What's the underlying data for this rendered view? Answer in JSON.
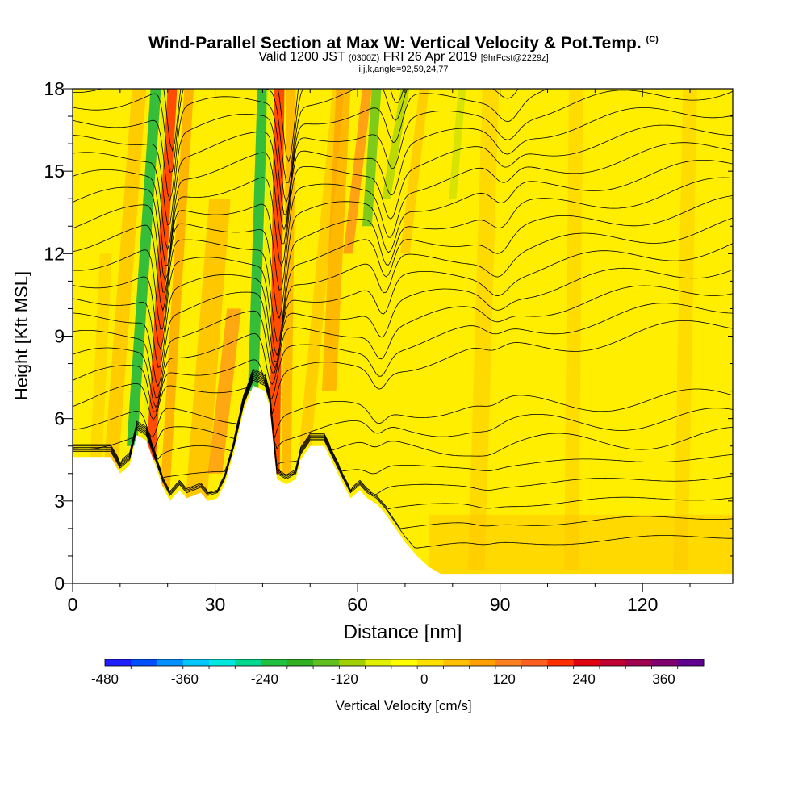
{
  "title": {
    "main": "Wind-Parallel Section at Max W: Vertical Velocity & Pot.Temp.",
    "copyright": "(C)",
    "valid_prefix": "Valid 1200 JST",
    "valid_utc": "(0300Z)",
    "valid_date": "FRI 26 Apr 2019",
    "forecast": "[9hrFcst@2229z]",
    "indices": "i,j,k,angle=92,59,24,77"
  },
  "chart_data": {
    "type": "heatmap",
    "xlabel": "Distance [nm]",
    "ylabel": "Height [Kft MSL]",
    "xlim": [
      0,
      139
    ],
    "ylim": [
      0,
      18
    ],
    "x_ticks": [
      "0",
      "30",
      "60",
      "90",
      "120"
    ],
    "y_ticks": [
      "0",
      "3",
      "6",
      "9",
      "12",
      "15",
      "18"
    ],
    "colorbar": {
      "label": "Vertical Velocity [cm/s]",
      "range": [
        -480,
        420
      ],
      "tick_labels": [
        "-480",
        "-360",
        "-240",
        "-120",
        "0",
        "120",
        "240",
        "360"
      ],
      "colors": [
        "#1e1eff",
        "#0050ff",
        "#0090ff",
        "#00c8ff",
        "#00e8e0",
        "#00d890",
        "#20c040",
        "#30b020",
        "#60c020",
        "#a0d000",
        "#e0f000",
        "#ffff00",
        "#ffe000",
        "#ffc000",
        "#ffa000",
        "#ff8020",
        "#ff6020",
        "#ff3000",
        "#e00010",
        "#c00030",
        "#a00050",
        "#800070",
        "#600090"
      ]
    },
    "terrain_kft": [
      [
        0,
        4.6
      ],
      [
        8,
        4.6
      ],
      [
        10,
        4.0
      ],
      [
        12,
        4.3
      ],
      [
        13.5,
        5.4
      ],
      [
        15.5,
        5.2
      ],
      [
        17,
        4.5
      ],
      [
        19,
        3.5
      ],
      [
        20.5,
        3.0
      ],
      [
        22.5,
        3.4
      ],
      [
        24,
        3.1
      ],
      [
        27,
        3.3
      ],
      [
        28.5,
        3.0
      ],
      [
        30.5,
        3.1
      ],
      [
        32,
        3.6
      ],
      [
        34,
        4.8
      ],
      [
        36,
        6.3
      ],
      [
        38,
        7.2
      ],
      [
        40.5,
        7.0
      ],
      [
        41.5,
        6.4
      ],
      [
        43,
        3.8
      ],
      [
        45,
        3.6
      ],
      [
        47,
        3.8
      ],
      [
        48,
        4.5
      ],
      [
        50,
        5.0
      ],
      [
        53,
        5.0
      ],
      [
        55,
        4.3
      ],
      [
        57,
        3.6
      ],
      [
        58.5,
        3.1
      ],
      [
        60.5,
        3.4
      ],
      [
        62,
        3.1
      ],
      [
        64,
        2.9
      ],
      [
        66,
        2.5
      ],
      [
        68,
        2.0
      ],
      [
        70,
        1.5
      ],
      [
        72.5,
        1.0
      ],
      [
        75,
        0.6
      ],
      [
        77.5,
        0.35
      ],
      [
        80,
        0.35
      ],
      [
        139,
        0.35
      ]
    ],
    "updraft_columns": [
      {
        "name": "",
        "peak_cm_s": 240
      },
      {
        "name": "",
        "peak_cm_s": 240
      },
      {
        "name": "",
        "peak_cm_s": 180
      }
    ],
    "downdraft_columns": [
      {
        "name": "",
        "min_cm_s": -240
      },
      {
        "name": "",
        "min_cm_s": -240
      },
      {
        "name": "",
        "min_cm_s": -120
      }
    ],
    "contour_field": "Potential temperature (isentropes)",
    "contour_count": 25,
    "grid": false
  }
}
